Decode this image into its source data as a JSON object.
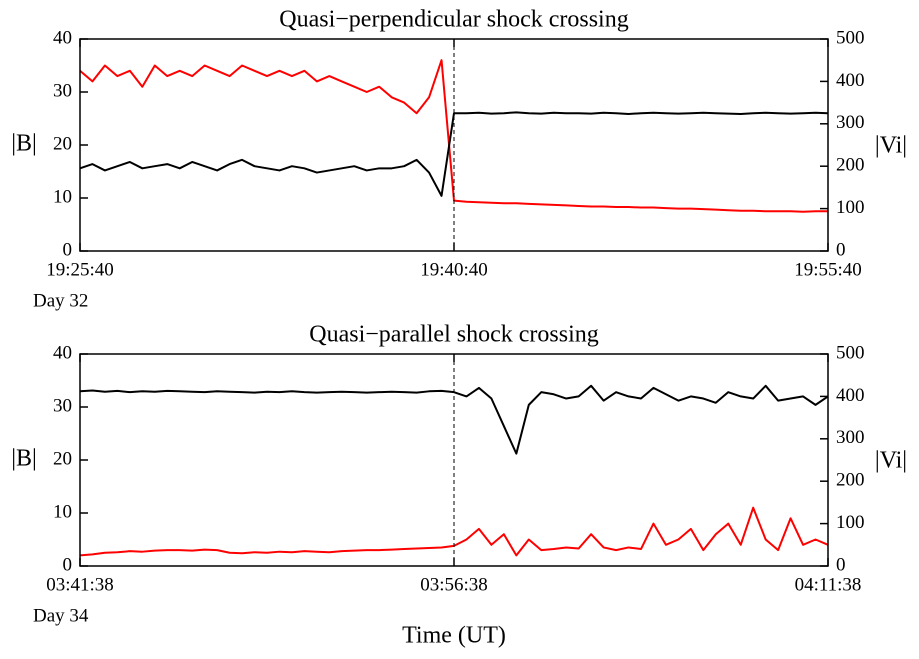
{
  "chart_data": [
    {
      "type": "line",
      "title": "Quasi−perpendicular shock crossing",
      "day": "Day 32",
      "ylabel": "|B|",
      "y2label": "|Vi|",
      "x": [
        "19:25:40",
        "19:26:10",
        "19:26:40",
        "19:27:10",
        "19:27:40",
        "19:28:10",
        "19:28:40",
        "19:29:10",
        "19:29:40",
        "19:30:10",
        "19:30:40",
        "19:31:10",
        "19:31:40",
        "19:32:10",
        "19:32:40",
        "19:33:10",
        "19:33:40",
        "19:34:10",
        "19:34:40",
        "19:35:10",
        "19:35:40",
        "19:36:10",
        "19:36:40",
        "19:37:10",
        "19:37:40",
        "19:38:10",
        "19:38:40",
        "19:39:10",
        "19:39:40",
        "19:40:10",
        "19:40:40",
        "19:41:10",
        "19:41:40",
        "19:42:10",
        "19:42:40",
        "19:43:10",
        "19:43:40",
        "19:44:10",
        "19:44:40",
        "19:45:10",
        "19:45:40",
        "19:46:10",
        "19:46:40",
        "19:47:10",
        "19:47:40",
        "19:48:10",
        "19:48:40",
        "19:49:10",
        "19:49:40",
        "19:50:10",
        "19:50:40",
        "19:51:10",
        "19:51:40",
        "19:52:10",
        "19:52:40",
        "19:53:10",
        "19:53:40",
        "19:54:10",
        "19:54:40",
        "19:55:10",
        "19:55:40"
      ],
      "series": [
        {
          "name": "|B|",
          "color": "#ff0000",
          "axis": "y",
          "values": [
            34,
            32,
            35,
            33,
            34,
            31,
            35,
            33,
            34,
            33,
            35,
            34,
            33,
            35,
            34,
            33,
            34,
            33,
            34,
            32,
            33,
            32,
            31,
            30,
            31,
            29,
            28,
            26,
            29,
            36,
            9.5,
            9.3,
            9.2,
            9.1,
            9,
            9,
            8.9,
            8.8,
            8.7,
            8.6,
            8.5,
            8.4,
            8.4,
            8.3,
            8.3,
            8.2,
            8.2,
            8.1,
            8,
            8,
            7.9,
            7.8,
            7.7,
            7.6,
            7.6,
            7.5,
            7.5,
            7.5,
            7.4,
            7.5,
            7.5
          ]
        },
        {
          "name": "|Vi|",
          "color": "#000000",
          "axis": "y2",
          "values": [
            195,
            205,
            190,
            200,
            210,
            195,
            200,
            205,
            195,
            210,
            200,
            190,
            205,
            215,
            200,
            195,
            190,
            200,
            195,
            185,
            190,
            195,
            200,
            190,
            195,
            195,
            200,
            215,
            185,
            130,
            325,
            325,
            326,
            324,
            325,
            327,
            325,
            324,
            326,
            325,
            325,
            324,
            326,
            325,
            323,
            325,
            326,
            325,
            324,
            325,
            326,
            325,
            324,
            323,
            325,
            326,
            325,
            324,
            325,
            326,
            325
          ]
        }
      ],
      "xlim": [
        "19:25:40",
        "19:55:40"
      ],
      "xticks": [
        "19:25:40",
        "19:40:40",
        "19:55:40"
      ],
      "marker_x": "19:40:40",
      "ylim": [
        0,
        40
      ],
      "yticks": [
        0,
        10,
        20,
        30,
        40
      ],
      "y2lim": [
        0,
        500
      ],
      "y2ticks": [
        0,
        100,
        200,
        300,
        400,
        500
      ]
    },
    {
      "type": "line",
      "title": "Quasi−parallel shock crossing",
      "day": "Day 34",
      "ylabel": "|B|",
      "y2label": "|Vi|",
      "xlabel": "Time (UT)",
      "x": [
        "03:41:38",
        "03:42:08",
        "03:42:38",
        "03:43:08",
        "03:43:38",
        "03:44:08",
        "03:44:38",
        "03:45:08",
        "03:45:38",
        "03:46:08",
        "03:46:38",
        "03:47:08",
        "03:47:38",
        "03:48:08",
        "03:48:38",
        "03:49:08",
        "03:49:38",
        "03:50:08",
        "03:50:38",
        "03:51:08",
        "03:51:38",
        "03:52:08",
        "03:52:38",
        "03:53:08",
        "03:53:38",
        "03:54:08",
        "03:54:38",
        "03:55:08",
        "03:55:38",
        "03:56:08",
        "03:56:38",
        "03:57:08",
        "03:57:38",
        "03:58:08",
        "03:58:38",
        "03:59:08",
        "03:59:38",
        "04:00:08",
        "04:00:38",
        "04:01:08",
        "04:01:38",
        "04:02:08",
        "04:02:38",
        "04:03:08",
        "04:03:38",
        "04:04:08",
        "04:04:38",
        "04:05:08",
        "04:05:38",
        "04:06:08",
        "04:06:38",
        "04:07:08",
        "04:07:38",
        "04:08:08",
        "04:08:38",
        "04:09:08",
        "04:09:38",
        "04:10:08",
        "04:10:38",
        "04:11:08",
        "04:11:38"
      ],
      "series": [
        {
          "name": "|B|",
          "color": "#ff0000",
          "axis": "y",
          "values": [
            2,
            2.2,
            2.5,
            2.6,
            2.8,
            2.7,
            2.9,
            3,
            3,
            2.9,
            3.1,
            3,
            2.5,
            2.4,
            2.6,
            2.5,
            2.7,
            2.6,
            2.8,
            2.7,
            2.6,
            2.8,
            2.9,
            3,
            3,
            3.1,
            3.2,
            3.3,
            3.4,
            3.5,
            3.8,
            5,
            7,
            4,
            6,
            2,
            5,
            3,
            3.2,
            3.5,
            3.3,
            6,
            3.5,
            3,
            3.5,
            3.2,
            8,
            4,
            5,
            7,
            3,
            6,
            8,
            4,
            11,
            5,
            3,
            9,
            4,
            5,
            4
          ]
        },
        {
          "name": "|Vi|",
          "color": "#000000",
          "axis": "y2",
          "values": [
            412,
            414,
            411,
            413,
            410,
            412,
            411,
            413,
            412,
            411,
            410,
            412,
            411,
            410,
            409,
            411,
            410,
            412,
            410,
            409,
            410,
            411,
            410,
            409,
            410,
            411,
            410,
            409,
            412,
            413,
            410,
            400,
            420,
            395,
            330,
            265,
            380,
            410,
            405,
            395,
            400,
            425,
            390,
            410,
            400,
            395,
            420,
            405,
            390,
            400,
            395,
            385,
            410,
            400,
            395,
            425,
            390,
            395,
            400,
            380,
            400
          ]
        }
      ],
      "xlim": [
        "03:41:38",
        "04:11:38"
      ],
      "xticks": [
        "03:41:38",
        "03:56:38",
        "04:11:38"
      ],
      "marker_x": "03:56:38",
      "ylim": [
        0,
        40
      ],
      "yticks": [
        0,
        10,
        20,
        30,
        40
      ],
      "y2lim": [
        0,
        500
      ],
      "y2ticks": [
        0,
        100,
        200,
        300,
        400,
        500
      ]
    }
  ]
}
